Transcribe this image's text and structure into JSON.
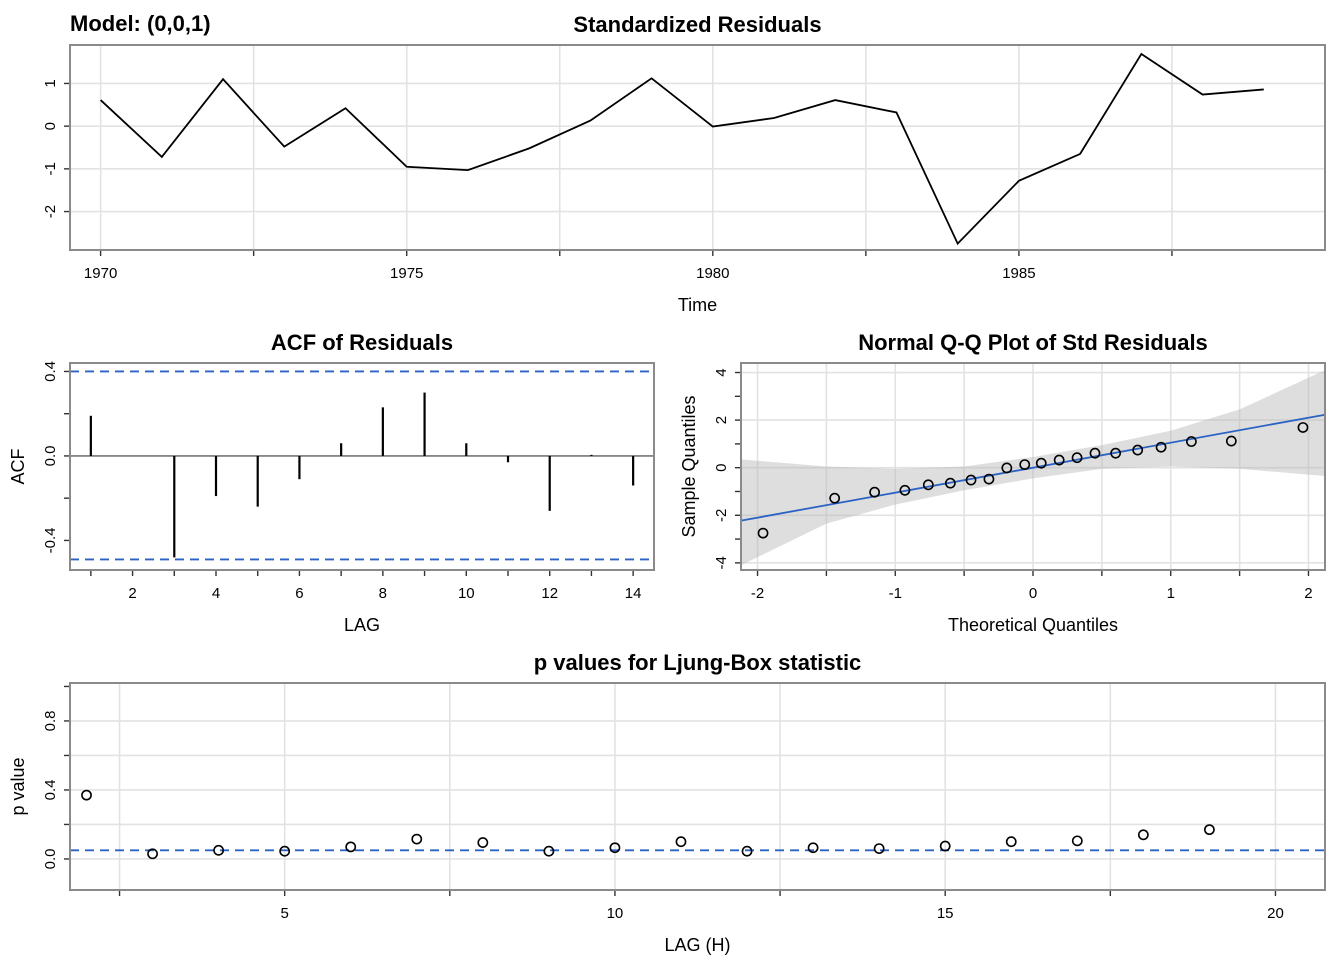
{
  "model_label": "Model: (0,0,1)",
  "chart_data": [
    {
      "type": "line",
      "title": "Standardized Residuals",
      "xlabel": "Time",
      "ylabel": "",
      "xlim": [
        1969.5,
        1990.0
      ],
      "ylim": [
        -2.9,
        1.9
      ],
      "xticks": [
        1970,
        1975,
        1980,
        1985
      ],
      "yticks": [
        -2,
        -1,
        0,
        1
      ],
      "x": [
        1970,
        1971,
        1972,
        1973,
        1974,
        1975,
        1976,
        1977,
        1978,
        1979,
        1980,
        1981,
        1982,
        1983,
        1984,
        1985,
        1986,
        1987,
        1988,
        1989
      ],
      "values": [
        0.61,
        -0.72,
        1.1,
        -0.48,
        0.42,
        -0.95,
        -1.03,
        -0.52,
        0.13,
        1.12,
        -0.01,
        0.19,
        0.61,
        0.32,
        -2.75,
        -1.28,
        -0.65,
        1.69,
        0.74,
        0.86
      ],
      "grid": true
    },
    {
      "type": "bar",
      "title": "ACF of Residuals",
      "xlabel": "LAG",
      "ylabel": "ACF",
      "xlim": [
        0.5,
        14.5
      ],
      "ylim": [
        -0.54,
        0.44
      ],
      "xticks": [
        2,
        4,
        6,
        8,
        10,
        12,
        14
      ],
      "yticks": [
        -0.4,
        0.0,
        0.4
      ],
      "ytick_labels": [
        "-0.4",
        "0.0",
        "0.4"
      ],
      "x": [
        1,
        2,
        3,
        4,
        5,
        6,
        7,
        8,
        9,
        10,
        11,
        12,
        13,
        14
      ],
      "values": [
        0.19,
        0.0,
        -0.48,
        -0.19,
        -0.24,
        -0.11,
        0.06,
        0.23,
        0.3,
        0.06,
        -0.03,
        -0.26,
        0.005,
        -0.14
      ],
      "conf_bounds": [
        0.4,
        -0.49
      ],
      "grid": false
    },
    {
      "type": "scatter",
      "title": "Normal Q-Q Plot of Std Residuals",
      "xlabel": "Theoretical Quantiles",
      "ylabel": "Sample Quantiles",
      "xlim": [
        -2.12,
        2.12
      ],
      "ylim": [
        -4.3,
        4.4
      ],
      "xticks": [
        -2,
        -1,
        0,
        1,
        2
      ],
      "yticks": [
        -4,
        -2,
        0,
        2,
        4
      ],
      "x": [
        -1.96,
        -1.44,
        -1.15,
        -0.93,
        -0.76,
        -0.6,
        -0.45,
        -0.32,
        -0.19,
        -0.06,
        0.06,
        0.19,
        0.32,
        0.45,
        0.6,
        0.76,
        0.93,
        1.15,
        1.44,
        1.96
      ],
      "values": [
        -2.75,
        -1.28,
        -1.03,
        -0.95,
        -0.72,
        -0.65,
        -0.52,
        -0.48,
        -0.01,
        0.13,
        0.19,
        0.32,
        0.42,
        0.61,
        0.61,
        0.74,
        0.86,
        1.1,
        1.12,
        1.69
      ],
      "reference_line": {
        "intercept": 0.0,
        "slope": 1.05
      },
      "band": {
        "x": [
          -2.12,
          -1.5,
          -1.0,
          -0.5,
          0.0,
          0.5,
          1.0,
          1.5,
          2.12
        ],
        "upper": [
          0.35,
          0.05,
          -0.05,
          0.05,
          0.45,
          0.95,
          1.55,
          2.45,
          4.1
        ],
        "lower": [
          -4.1,
          -2.35,
          -1.55,
          -0.95,
          -0.45,
          -0.05,
          0.05,
          -0.05,
          -0.35
        ]
      },
      "grid": true
    },
    {
      "type": "scatter",
      "title": "p values for Ljung-Box statistic",
      "xlabel": "LAG (H)",
      "ylabel": "p value",
      "xlim": [
        1.75,
        20.75
      ],
      "ylim": [
        -0.18,
        1.02
      ],
      "xticks": [
        5,
        10,
        15,
        20
      ],
      "yticks": [
        0.0,
        0.4,
        0.8
      ],
      "ytick_labels": [
        "0.0",
        "0.4",
        "0.8"
      ],
      "x": [
        2,
        3,
        4,
        5,
        6,
        7,
        8,
        9,
        10,
        11,
        12,
        13,
        14,
        15,
        16,
        17,
        18,
        19
      ],
      "values": [
        0.37,
        0.03,
        0.05,
        0.045,
        0.07,
        0.115,
        0.095,
        0.045,
        0.065,
        0.1,
        0.045,
        0.065,
        0.06,
        0.075,
        0.1,
        0.105,
        0.14,
        0.17
      ],
      "significance_line": 0.05,
      "grid": true
    }
  ]
}
